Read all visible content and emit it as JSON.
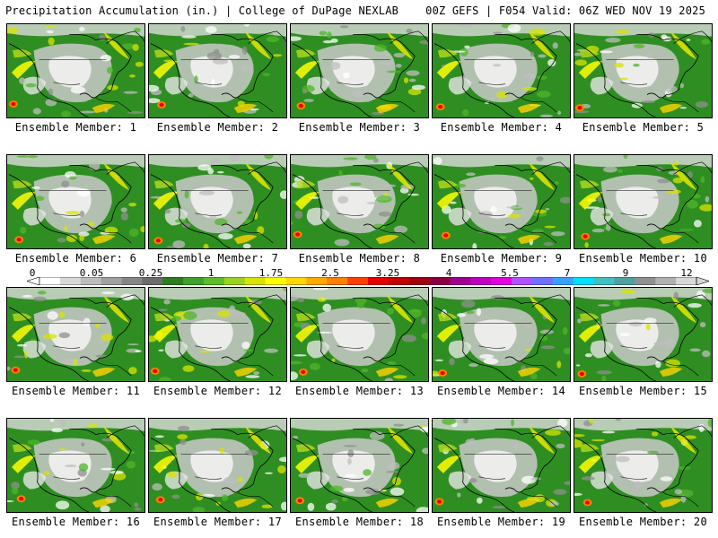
{
  "header": {
    "title": "Precipitation Accumulation (in.) | College of DuPage NEXLAB",
    "valid": "00Z GEFS | F054 Valid: 06Z WED NOV 19 2025"
  },
  "members": [
    {
      "label": "Ensemble Member: 1"
    },
    {
      "label": "Ensemble Member: 2"
    },
    {
      "label": "Ensemble Member: 3"
    },
    {
      "label": "Ensemble Member: 4"
    },
    {
      "label": "Ensemble Member: 5"
    },
    {
      "label": "Ensemble Member: 6"
    },
    {
      "label": "Ensemble Member: 7"
    },
    {
      "label": "Ensemble Member: 8"
    },
    {
      "label": "Ensemble Member: 9"
    },
    {
      "label": "Ensemble Member: 10"
    },
    {
      "label": "Ensemble Member: 11"
    },
    {
      "label": "Ensemble Member: 12"
    },
    {
      "label": "Ensemble Member: 13"
    },
    {
      "label": "Ensemble Member: 14"
    },
    {
      "label": "Ensemble Member: 15"
    },
    {
      "label": "Ensemble Member: 16"
    },
    {
      "label": "Ensemble Member: 17"
    },
    {
      "label": "Ensemble Member: 18"
    },
    {
      "label": "Ensemble Member: 19"
    },
    {
      "label": "Ensemble Member: 20"
    }
  ],
  "scale": {
    "labels": [
      "0",
      "0.05",
      "0.25",
      "1",
      "1.75",
      "2.5",
      "3.25",
      "4",
      "5.5",
      "7",
      "9",
      "12"
    ],
    "colors": [
      "#ffffff",
      "#d8d8d8",
      "#bcbcbc",
      "#a0a0a0",
      "#868686",
      "#6c6c6c",
      "#2e7d20",
      "#3ea12b",
      "#5cbd2a",
      "#9bd21f",
      "#d8e400",
      "#ffff00",
      "#ffd600",
      "#ffaa00",
      "#ff7f00",
      "#ff3f00",
      "#e80000",
      "#c40000",
      "#a00010",
      "#8b0040",
      "#a00090",
      "#c000c0",
      "#e000e0",
      "#b050ff",
      "#7070ff",
      "#3aa0ff",
      "#00e0ff",
      "#40c0c0",
      "#50a0a0",
      "#909090",
      "#b0b0b0",
      "#d8d8d8"
    ]
  }
}
